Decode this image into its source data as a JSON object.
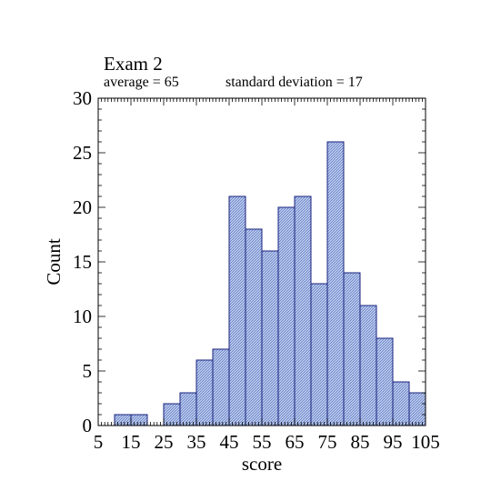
{
  "chart_data": {
    "type": "bar",
    "title": "Exam 2",
    "subtitle_average": "average = 65",
    "subtitle_sd": "standard deviation = 17",
    "xlabel": "score",
    "ylabel": "Count",
    "xlim": [
      5,
      105
    ],
    "ylim": [
      0,
      30
    ],
    "bin_width": 5,
    "x_ticks": [
      "5",
      "15",
      "25",
      "35",
      "45",
      "55",
      "65",
      "75",
      "85",
      "95",
      "105"
    ],
    "y_ticks": [
      "0",
      "5",
      "10",
      "15",
      "20",
      "25",
      "30"
    ],
    "bins": [
      {
        "start": 10,
        "end": 15,
        "count": 1
      },
      {
        "start": 15,
        "end": 20,
        "count": 1
      },
      {
        "start": 25,
        "end": 30,
        "count": 2
      },
      {
        "start": 30,
        "end": 35,
        "count": 3
      },
      {
        "start": 35,
        "end": 40,
        "count": 6
      },
      {
        "start": 40,
        "end": 45,
        "count": 7
      },
      {
        "start": 45,
        "end": 50,
        "count": 21
      },
      {
        "start": 50,
        "end": 55,
        "count": 18
      },
      {
        "start": 55,
        "end": 60,
        "count": 16
      },
      {
        "start": 60,
        "end": 65,
        "count": 20
      },
      {
        "start": 65,
        "end": 70,
        "count": 21
      },
      {
        "start": 70,
        "end": 75,
        "count": 13
      },
      {
        "start": 75,
        "end": 80,
        "count": 26
      },
      {
        "start": 80,
        "end": 85,
        "count": 14
      },
      {
        "start": 85,
        "end": 90,
        "count": 11
      },
      {
        "start": 90,
        "end": 95,
        "count": 8
      },
      {
        "start": 95,
        "end": 100,
        "count": 4
      },
      {
        "start": 100,
        "end": 105,
        "count": 3
      }
    ],
    "bar_fill": "#a9bde6",
    "bar_stroke": "#1a237e",
    "grid": false
  }
}
